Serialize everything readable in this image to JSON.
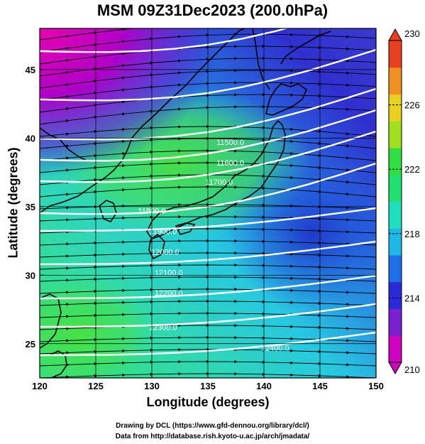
{
  "title": "MSM 09Z31Dec2023 (200.0hPa)",
  "x_axis": {
    "label": "Longitude (degrees)",
    "range": [
      120,
      150
    ],
    "ticks": [
      "120",
      "125",
      "130",
      "135",
      "140",
      "145",
      "150"
    ]
  },
  "y_axis": {
    "label": "Latitude  (degrees)",
    "range": [
      22.5,
      48
    ],
    "ticks": [
      "25",
      "30",
      "35",
      "40",
      "45"
    ]
  },
  "colorbar": {
    "range": [
      210,
      230
    ],
    "labels": [
      "210",
      "214",
      "218",
      "222",
      "226",
      "230"
    ],
    "colors": [
      "#d000c0",
      "#7a20d0",
      "#2a2ad8",
      "#1e6ee8",
      "#1eb8e8",
      "#1ee0c0",
      "#20e070",
      "#30e040",
      "#a0e020",
      "#e8d020",
      "#f09020",
      "#e84020"
    ]
  },
  "contours": [
    {
      "label": "11500.0",
      "at": [
        137,
        39.5
      ]
    },
    {
      "label": "11600.0",
      "at": [
        137,
        38
      ]
    },
    {
      "label": "11700.0",
      "at": [
        136,
        36.6
      ]
    },
    {
      "label": "11800.0",
      "at": [
        130,
        34.5
      ]
    },
    {
      "label": "11900.0",
      "at": [
        131,
        33
      ]
    },
    {
      "label": "12000.0",
      "at": [
        131.2,
        31.5
      ]
    },
    {
      "label": "12100.0",
      "at": [
        131.5,
        30
      ]
    },
    {
      "label": "12200.0",
      "at": [
        131.5,
        28.5
      ]
    },
    {
      "label": "12300.0",
      "at": [
        131,
        26
      ]
    },
    {
      "label": "12400.0",
      "at": [
        141,
        24.5
      ]
    }
  ],
  "footer": {
    "line1": "Drawing by DCL (https://www.gfd-dennou.org/library/dcl/)",
    "line2": "Data from http://database.rish.kyoto-u.ac.jp/arch/jmadata/"
  }
}
